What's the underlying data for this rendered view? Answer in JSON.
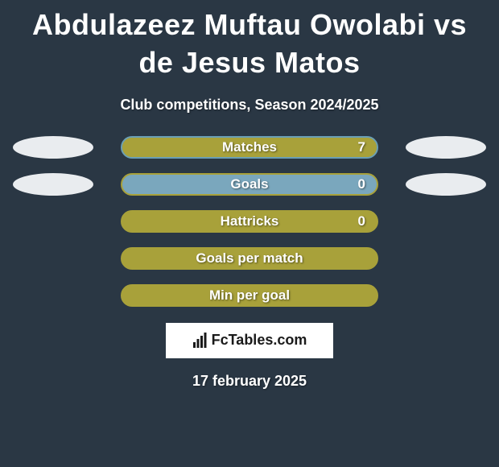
{
  "background_color": "#2a3744",
  "title": "Abdulazeez Muftau Owolabi vs de Jesus Matos",
  "title_fontsize": 36,
  "subtitle": "Club competitions, Season 2024/2025",
  "subtitle_fontsize": 18,
  "ellipse_color": "#e9ecef",
  "rows": [
    {
      "label": "Matches",
      "value": "7",
      "has_left_ellipse": true,
      "has_right_ellipse": true,
      "bar_bg": "#a8a13a",
      "bar_border": "#6a9fb5",
      "fill_pct": 100,
      "fill_color": "#a8a13a"
    },
    {
      "label": "Goals",
      "value": "0",
      "has_left_ellipse": true,
      "has_right_ellipse": true,
      "bar_bg": "#7aa7bd",
      "bar_border": "#a8a13a",
      "fill_pct": 0,
      "fill_color": "#a8a13a"
    },
    {
      "label": "Hattricks",
      "value": "0",
      "has_left_ellipse": false,
      "has_right_ellipse": false,
      "bar_bg": "#a8a13a",
      "bar_border": "#a8a13a",
      "fill_pct": 100,
      "fill_color": "#a8a13a"
    },
    {
      "label": "Goals per match",
      "value": "",
      "has_left_ellipse": false,
      "has_right_ellipse": false,
      "bar_bg": "#a8a13a",
      "bar_border": "#a8a13a",
      "fill_pct": 100,
      "fill_color": "#a8a13a"
    },
    {
      "label": "Min per goal",
      "value": "",
      "has_left_ellipse": false,
      "has_right_ellipse": false,
      "bar_bg": "#a8a13a",
      "bar_border": "#a8a13a",
      "fill_pct": 100,
      "fill_color": "#a8a13a"
    }
  ],
  "logo": {
    "icon_name": "bar-chart-icon",
    "text": "FcTables.com"
  },
  "date": "17 february 2025",
  "text_color": "#ffffff"
}
